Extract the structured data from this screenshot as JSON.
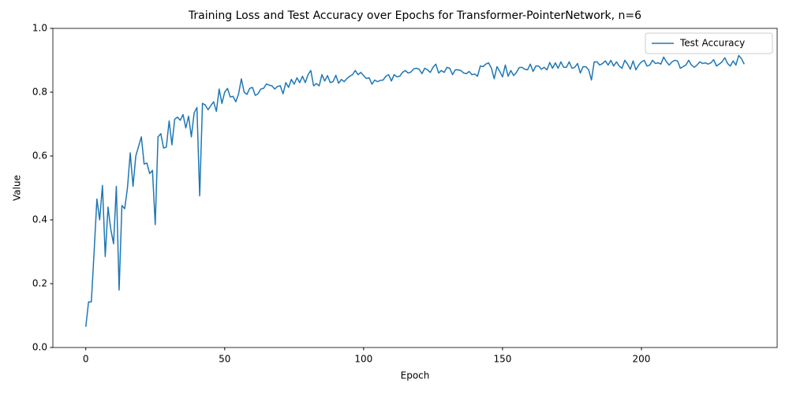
{
  "chart_data": {
    "type": "line",
    "title": "Training Loss and Test Accuracy over Epochs for Transformer-PointerNetwork, n=6",
    "x_label": "Epoch",
    "y_label": "Value",
    "legend": "upper right",
    "x": [
      0,
      1,
      2,
      3,
      4,
      5,
      6,
      7,
      8,
      9,
      10,
      11,
      12,
      13,
      14,
      15,
      16,
      17,
      18,
      19,
      20,
      21,
      22,
      23,
      24,
      25,
      26,
      27,
      28,
      29,
      30,
      31,
      32,
      33,
      34,
      35,
      36,
      37,
      38,
      39,
      40,
      41,
      42,
      43,
      44,
      45,
      46,
      47,
      48,
      49,
      50,
      51,
      52,
      53,
      54,
      55,
      56,
      57,
      58,
      59,
      60,
      61,
      62,
      63,
      64,
      65,
      66,
      67,
      68,
      69,
      70,
      71,
      72,
      73,
      74,
      75,
      76,
      77,
      78,
      79,
      80,
      81,
      82,
      83,
      84,
      85,
      86,
      87,
      88,
      89,
      90,
      91,
      92,
      93,
      94,
      95,
      96,
      97,
      98,
      99,
      100,
      101,
      102,
      103,
      104,
      105,
      106,
      107,
      108,
      109,
      110,
      111,
      112,
      113,
      114,
      115,
      116,
      117,
      118,
      119,
      120,
      121,
      122,
      123,
      124,
      125,
      126,
      127,
      128,
      129,
      130,
      131,
      132,
      133,
      134,
      135,
      136,
      137,
      138,
      139,
      140,
      141,
      142,
      143,
      144,
      145,
      146,
      147,
      148,
      149,
      150,
      151,
      152,
      153,
      154,
      155,
      156,
      157,
      158,
      159,
      160,
      161,
      162,
      163,
      164,
      165,
      166,
      167,
      168,
      169,
      170,
      171,
      172,
      173,
      174,
      175,
      176,
      177,
      178,
      179,
      180,
      181,
      182,
      183,
      184,
      185,
      186,
      187,
      188,
      189,
      190,
      191,
      192,
      193,
      194,
      195,
      196,
      197,
      198,
      199,
      200,
      201,
      202,
      203,
      204,
      205,
      206,
      207,
      208,
      209,
      210,
      211,
      212,
      213,
      214,
      215,
      216,
      217,
      218,
      219,
      220,
      221,
      222,
      223,
      224,
      225,
      226,
      227,
      228,
      229,
      230,
      231,
      232,
      233,
      234,
      235,
      236,
      237
    ],
    "series": [
      {
        "name": "Test Accuracy",
        "color": "#1f77b4",
        "values": [
          0.065,
          0.143,
          0.143,
          0.3,
          0.465,
          0.4,
          0.508,
          0.285,
          0.44,
          0.37,
          0.325,
          0.505,
          0.18,
          0.445,
          0.435,
          0.5,
          0.61,
          0.505,
          0.6,
          0.63,
          0.66,
          0.575,
          0.578,
          0.545,
          0.555,
          0.385,
          0.66,
          0.67,
          0.625,
          0.628,
          0.71,
          0.635,
          0.715,
          0.722,
          0.712,
          0.73,
          0.688,
          0.725,
          0.66,
          0.735,
          0.752,
          0.475,
          0.765,
          0.76,
          0.745,
          0.758,
          0.77,
          0.74,
          0.81,
          0.765,
          0.8,
          0.812,
          0.785,
          0.787,
          0.77,
          0.795,
          0.842,
          0.8,
          0.793,
          0.812,
          0.815,
          0.79,
          0.795,
          0.81,
          0.812,
          0.826,
          0.822,
          0.82,
          0.81,
          0.818,
          0.82,
          0.795,
          0.83,
          0.815,
          0.84,
          0.825,
          0.845,
          0.83,
          0.85,
          0.83,
          0.855,
          0.868,
          0.82,
          0.827,
          0.82,
          0.855,
          0.835,
          0.852,
          0.83,
          0.833,
          0.853,
          0.828,
          0.84,
          0.833,
          0.843,
          0.85,
          0.855,
          0.868,
          0.855,
          0.862,
          0.852,
          0.843,
          0.845,
          0.825,
          0.838,
          0.833,
          0.837,
          0.838,
          0.85,
          0.855,
          0.835,
          0.855,
          0.848,
          0.85,
          0.862,
          0.868,
          0.86,
          0.863,
          0.873,
          0.875,
          0.872,
          0.858,
          0.875,
          0.87,
          0.862,
          0.878,
          0.888,
          0.86,
          0.868,
          0.862,
          0.878,
          0.875,
          0.855,
          0.87,
          0.87,
          0.868,
          0.86,
          0.858,
          0.865,
          0.855,
          0.857,
          0.85,
          0.882,
          0.88,
          0.888,
          0.892,
          0.875,
          0.842,
          0.88,
          0.865,
          0.848,
          0.885,
          0.85,
          0.868,
          0.852,
          0.862,
          0.877,
          0.878,
          0.872,
          0.87,
          0.888,
          0.865,
          0.882,
          0.882,
          0.872,
          0.878,
          0.87,
          0.893,
          0.875,
          0.892,
          0.875,
          0.895,
          0.878,
          0.878,
          0.895,
          0.875,
          0.878,
          0.89,
          0.86,
          0.88,
          0.88,
          0.87,
          0.838,
          0.895,
          0.895,
          0.885,
          0.89,
          0.898,
          0.885,
          0.9,
          0.882,
          0.895,
          0.882,
          0.875,
          0.9,
          0.888,
          0.872,
          0.898,
          0.87,
          0.885,
          0.895,
          0.9,
          0.882,
          0.885,
          0.9,
          0.89,
          0.892,
          0.888,
          0.91,
          0.895,
          0.885,
          0.895,
          0.9,
          0.898,
          0.875,
          0.88,
          0.885,
          0.9,
          0.885,
          0.878,
          0.885,
          0.895,
          0.89,
          0.892,
          0.888,
          0.892,
          0.902,
          0.882,
          0.888,
          0.895,
          0.908,
          0.89,
          0.882,
          0.898,
          0.885,
          0.915,
          0.905,
          0.888
        ]
      }
    ],
    "xlim": [
      -11.85,
      248.85
    ],
    "xticks": [
      0,
      50,
      100,
      150,
      200
    ],
    "ylim": [
      0,
      1
    ],
    "yticks": [
      {
        "value": 0,
        "label": "0.0"
      },
      {
        "value": 0.2,
        "label": "0.2"
      },
      {
        "value": 0.4,
        "label": "0.4"
      },
      {
        "value": 0.6,
        "label": "0.6"
      },
      {
        "value": 0.8,
        "label": "0.8"
      },
      {
        "value": 1,
        "label": "1.0"
      }
    ],
    "grid": false
  }
}
